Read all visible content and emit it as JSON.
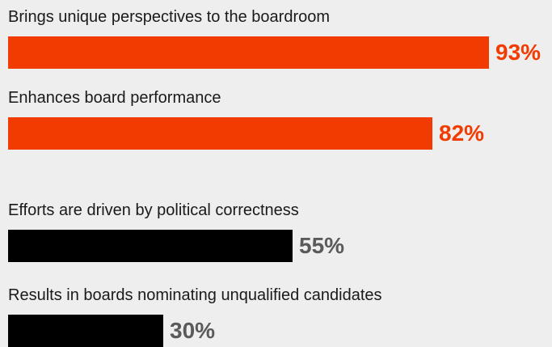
{
  "colors": {
    "background": "#efeeee",
    "positive": "#f23b00",
    "negative": "#000000",
    "negative_text": "#5a5a5a"
  },
  "chart_data": {
    "type": "bar",
    "orientation": "horizontal",
    "xlim": [
      0,
      100
    ],
    "unit": "%",
    "categories": [
      "Brings unique perspectives to the boardroom",
      "Enhances board performance",
      "Efforts are driven by political correctness",
      "Results in boards nominating unqualified candidates"
    ],
    "values": [
      93,
      82,
      55,
      30
    ],
    "value_labels": [
      "93%",
      "82%",
      "55%",
      "30%"
    ],
    "bar_colors": [
      "#f23b00",
      "#f23b00",
      "#000000",
      "#000000"
    ],
    "value_label_colors": [
      "#f23b00",
      "#f23b00",
      "#5a5a5a",
      "#5a5a5a"
    ],
    "groups": [
      "positive",
      "positive",
      "negative",
      "negative"
    ]
  }
}
